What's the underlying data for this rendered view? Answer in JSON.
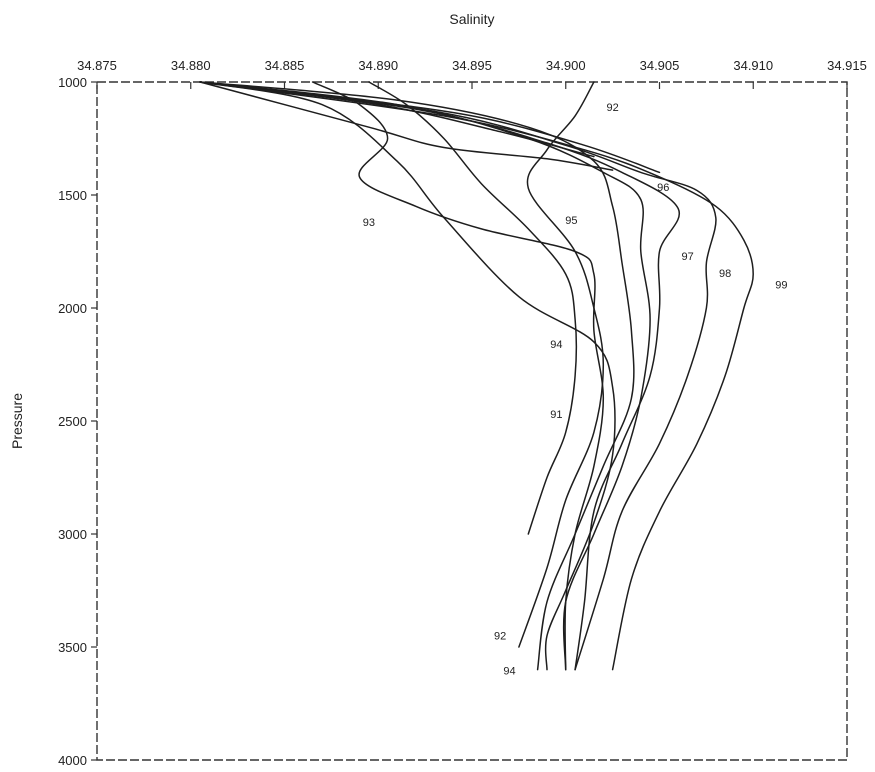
{
  "chart_data": {
    "type": "line",
    "title": "",
    "xlabel": "Salinity",
    "ylabel": "Pressure",
    "x_axis_position": "top",
    "y_axis_inverted": true,
    "xlim": [
      34.875,
      34.915
    ],
    "ylim": [
      1000,
      4000
    ],
    "x_ticks": [
      "34.875",
      "34.880",
      "34.885",
      "34.890",
      "34.895",
      "34.900",
      "34.905",
      "34.910",
      "34.915"
    ],
    "y_ticks": [
      "1000",
      "1500",
      "2000",
      "2500",
      "3000",
      "3500",
      "4000"
    ],
    "grid": false,
    "legend": "none",
    "line_color": "#1e1e1e",
    "series": [
      {
        "name": "91",
        "points": [
          [
            34.8895,
            1000
          ],
          [
            34.8915,
            1100
          ],
          [
            34.8935,
            1250
          ],
          [
            34.8955,
            1450
          ],
          [
            34.898,
            1650
          ],
          [
            34.9,
            1850
          ],
          [
            34.9005,
            2050
          ],
          [
            34.9005,
            2300
          ],
          [
            34.9,
            2550
          ],
          [
            34.899,
            2750
          ],
          [
            34.898,
            3000
          ]
        ],
        "label": {
          "text": "91",
          "x": 34.8995,
          "y": 2470
        }
      },
      {
        "name": "92",
        "points": [
          [
            34.9015,
            1000
          ],
          [
            34.9005,
            1150
          ],
          [
            34.899,
            1300
          ],
          [
            34.898,
            1470
          ],
          [
            34.9005,
            1750
          ],
          [
            34.9015,
            2000
          ],
          [
            34.902,
            2250
          ],
          [
            34.9015,
            2550
          ],
          [
            34.9,
            2850
          ],
          [
            34.899,
            3150
          ],
          [
            34.8975,
            3500
          ]
        ],
        "label": {
          "text": "92",
          "x": 34.9025,
          "y": 1110
        }
      },
      {
        "name": "92b",
        "points": [
          [
            34.8805,
            1000
          ],
          [
            34.887,
            1060
          ],
          [
            34.895,
            1150
          ],
          [
            34.901,
            1280
          ],
          [
            34.905,
            1400
          ]
        ]
      },
      {
        "name": "93",
        "points": [
          [
            34.8865,
            1000
          ],
          [
            34.889,
            1100
          ],
          [
            34.8905,
            1250
          ],
          [
            34.889,
            1420
          ],
          [
            34.892,
            1550
          ],
          [
            34.8955,
            1650
          ],
          [
            34.9005,
            1750
          ],
          [
            34.9015,
            1850
          ],
          [
            34.9015,
            2100
          ],
          [
            34.902,
            2400
          ],
          [
            34.9015,
            2700
          ],
          [
            34.9005,
            3000
          ],
          [
            34.9,
            3300
          ],
          [
            34.9,
            3600
          ]
        ],
        "label": {
          "text": "93",
          "x": 34.8895,
          "y": 1620
        }
      },
      {
        "name": "94",
        "points": [
          [
            34.8805,
            1000
          ],
          [
            34.887,
            1100
          ],
          [
            34.891,
            1350
          ],
          [
            34.8935,
            1600
          ],
          [
            34.8975,
            1950
          ],
          [
            34.9015,
            2150
          ],
          [
            34.9025,
            2350
          ],
          [
            34.9025,
            2650
          ],
          [
            34.9015,
            2950
          ],
          [
            34.9,
            3250
          ],
          [
            34.899,
            3450
          ],
          [
            34.899,
            3600
          ]
        ],
        "label": {
          "text": "94",
          "x": 34.8995,
          "y": 2160
        }
      },
      {
        "name": "95",
        "points": [
          [
            34.8805,
            1000
          ],
          [
            34.891,
            1080
          ],
          [
            34.898,
            1200
          ],
          [
            34.9015,
            1350
          ],
          [
            34.9025,
            1550
          ],
          [
            34.903,
            1800
          ],
          [
            34.9035,
            2100
          ],
          [
            34.9035,
            2400
          ],
          [
            34.902,
            2700
          ],
          [
            34.9005,
            3000
          ],
          [
            34.899,
            3300
          ],
          [
            34.8985,
            3600
          ]
        ],
        "label": {
          "text": "95",
          "x": 34.9003,
          "y": 1610
        }
      },
      {
        "name": "96",
        "points": [
          [
            34.8805,
            1000
          ],
          [
            34.891,
            1100
          ],
          [
            34.898,
            1250
          ],
          [
            34.902,
            1400
          ],
          [
            34.904,
            1520
          ],
          [
            34.904,
            1750
          ],
          [
            34.9045,
            2050
          ],
          [
            34.904,
            2400
          ],
          [
            34.903,
            2700
          ],
          [
            34.9015,
            3000
          ],
          [
            34.9,
            3300
          ],
          [
            34.9,
            3600
          ]
        ],
        "label": {
          "text": "96",
          "x": 34.9052,
          "y": 1465
        }
      },
      {
        "name": "97",
        "points": [
          [
            34.8805,
            1000
          ],
          [
            34.892,
            1120
          ],
          [
            34.899,
            1270
          ],
          [
            34.903,
            1400
          ],
          [
            34.906,
            1560
          ],
          [
            34.905,
            1750
          ],
          [
            34.905,
            2000
          ],
          [
            34.9045,
            2300
          ],
          [
            34.903,
            2600
          ],
          [
            34.9015,
            2900
          ],
          [
            34.901,
            3300
          ],
          [
            34.9005,
            3600
          ]
        ],
        "label": {
          "text": "97",
          "x": 34.9065,
          "y": 1770
        }
      },
      {
        "name": "98",
        "points": [
          [
            34.8805,
            1000
          ],
          [
            34.893,
            1130
          ],
          [
            34.9,
            1280
          ],
          [
            34.904,
            1400
          ],
          [
            34.907,
            1480
          ],
          [
            34.908,
            1600
          ],
          [
            34.9075,
            1800
          ],
          [
            34.9075,
            2000
          ],
          [
            34.9065,
            2300
          ],
          [
            34.905,
            2600
          ],
          [
            34.903,
            2900
          ],
          [
            34.902,
            3200
          ],
          [
            34.9005,
            3600
          ]
        ],
        "label": {
          "text": "98",
          "x": 34.9085,
          "y": 1845
        }
      },
      {
        "name": "99",
        "points": [
          [
            34.8805,
            1000
          ],
          [
            34.8935,
            1150
          ],
          [
            34.901,
            1300
          ],
          [
            34.905,
            1420
          ],
          [
            34.908,
            1550
          ],
          [
            34.9095,
            1700
          ],
          [
            34.91,
            1850
          ],
          [
            34.9095,
            2000
          ],
          [
            34.9085,
            2300
          ],
          [
            34.907,
            2600
          ],
          [
            34.905,
            2900
          ],
          [
            34.9035,
            3200
          ],
          [
            34.9025,
            3600
          ]
        ],
        "label": {
          "text": "99",
          "x": 34.9115,
          "y": 1895
        }
      },
      {
        "name": "92c",
        "points": [
          [
            34.8805,
            1000
          ],
          [
            34.8895,
            1200
          ],
          [
            34.8935,
            1290
          ],
          [
            34.899,
            1340
          ],
          [
            34.9025,
            1390
          ]
        ],
        "label": {
          "text": "92",
          "x": 34.8965,
          "y": 3450
        }
      },
      {
        "name": "94b",
        "points": [
          [
            34.8805,
            1000
          ],
          [
            34.89,
            1100
          ],
          [
            34.8965,
            1220
          ],
          [
            34.9015,
            1330
          ]
        ],
        "label": {
          "text": "94",
          "x": 34.897,
          "y": 3605
        }
      }
    ]
  }
}
